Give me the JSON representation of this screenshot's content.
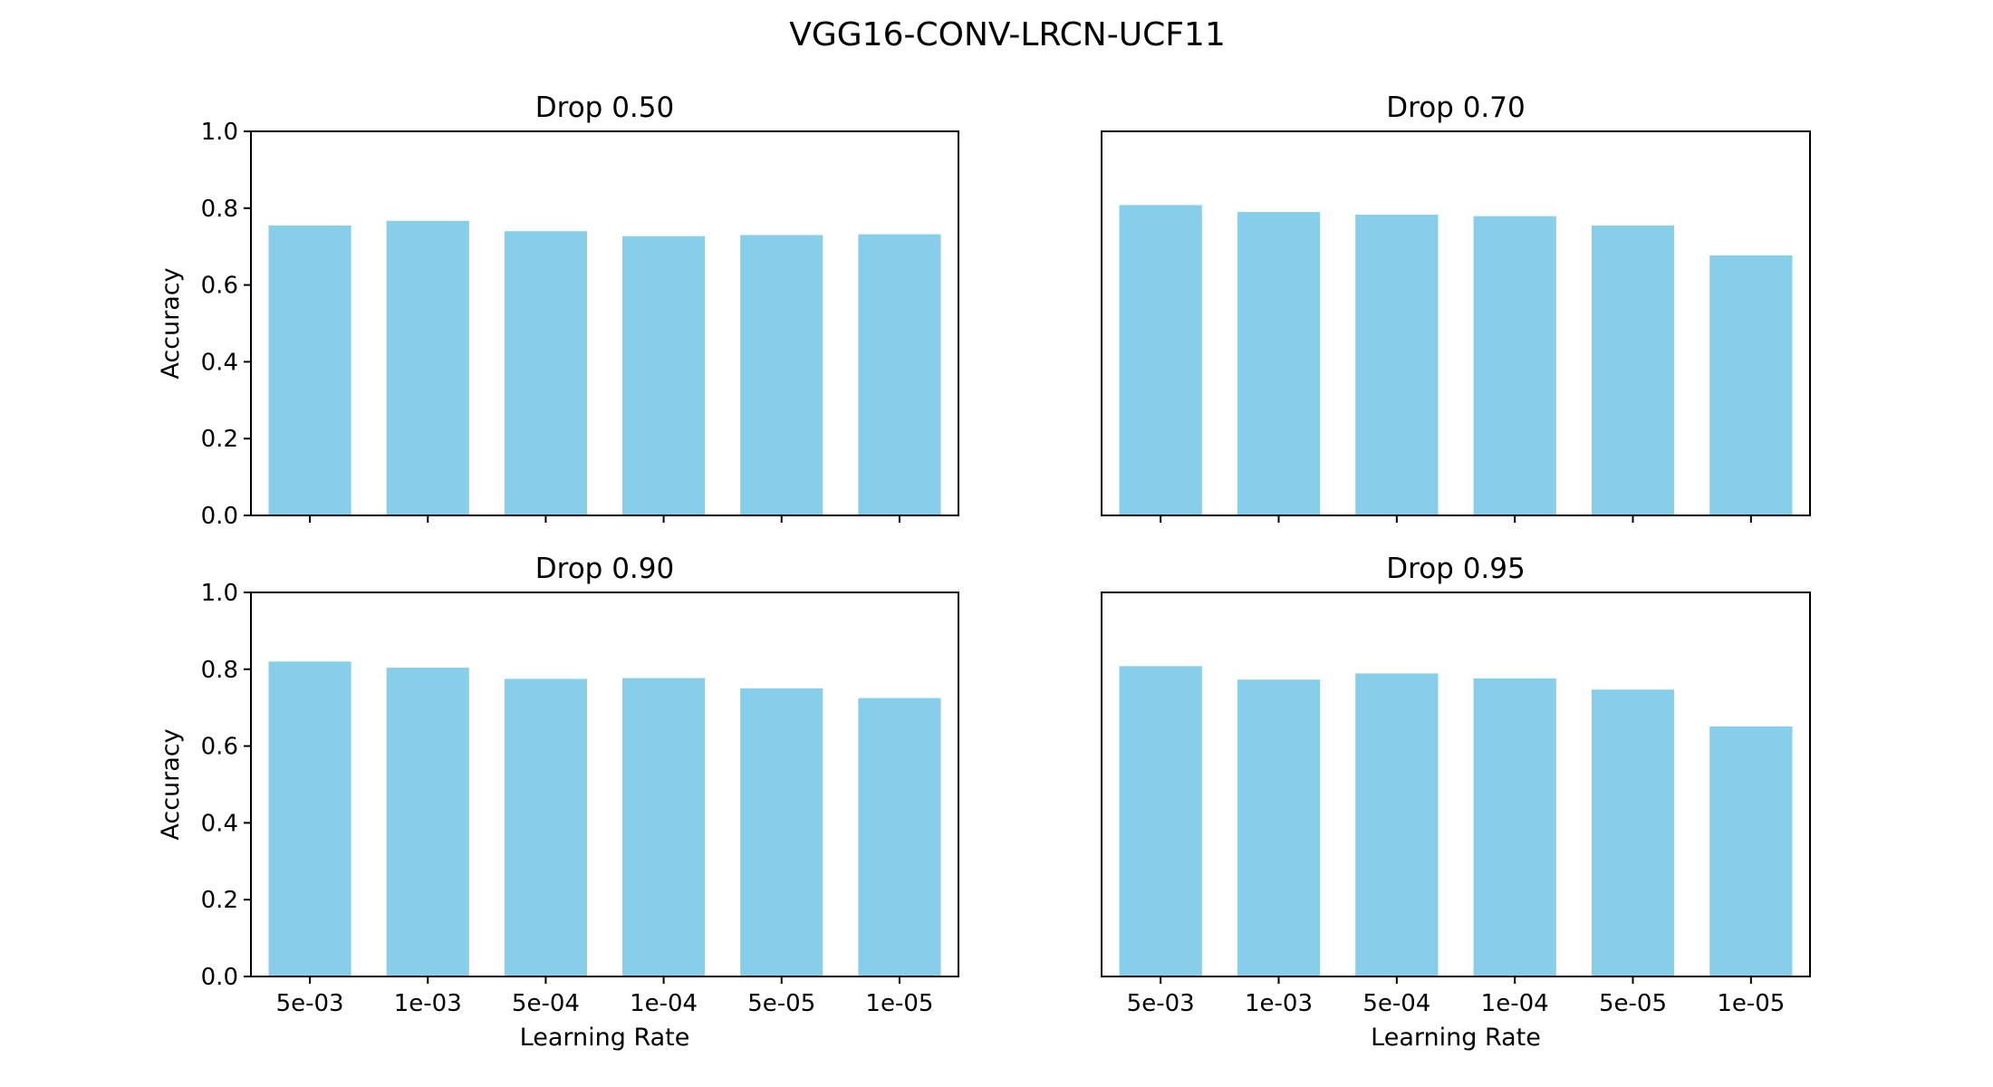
{
  "figure": {
    "title": "VGG16-CONV-LRCN-UCF11"
  },
  "chart_data": [
    {
      "type": "bar",
      "title": "Drop 0.50",
      "categories": [
        "5e-03",
        "1e-03",
        "5e-04",
        "1e-04",
        "5e-05",
        "1e-05"
      ],
      "values": [
        0.755,
        0.767,
        0.74,
        0.727,
        0.73,
        0.732
      ],
      "xlabel": "",
      "ylabel": "Accuracy",
      "ylim": [
        0,
        1.0
      ],
      "yticks": [
        "0.0",
        "0.2",
        "0.4",
        "0.6",
        "0.8",
        "1.0"
      ],
      "color": "#87CEEB",
      "grid": false
    },
    {
      "type": "bar",
      "title": "Drop 0.70",
      "categories": [
        "5e-03",
        "1e-03",
        "5e-04",
        "1e-04",
        "5e-05",
        "1e-05"
      ],
      "values": [
        0.808,
        0.79,
        0.783,
        0.779,
        0.755,
        0.677
      ],
      "xlabel": "",
      "ylabel": "",
      "ylim": [
        0,
        1.0
      ],
      "yticks": [],
      "color": "#87CEEB",
      "grid": false
    },
    {
      "type": "bar",
      "title": "Drop 0.90",
      "categories": [
        "5e-03",
        "1e-03",
        "5e-04",
        "1e-04",
        "5e-05",
        "1e-05"
      ],
      "values": [
        0.82,
        0.804,
        0.775,
        0.777,
        0.75,
        0.725
      ],
      "xlabel": "Learning Rate",
      "ylabel": "Accuracy",
      "ylim": [
        0,
        1.0
      ],
      "yticks": [
        "0.0",
        "0.2",
        "0.4",
        "0.6",
        "0.8",
        "1.0"
      ],
      "color": "#87CEEB",
      "grid": false
    },
    {
      "type": "bar",
      "title": "Drop 0.95",
      "categories": [
        "5e-03",
        "1e-03",
        "5e-04",
        "1e-04",
        "5e-05",
        "1e-05"
      ],
      "values": [
        0.808,
        0.773,
        0.789,
        0.776,
        0.747,
        0.651
      ],
      "xlabel": "Learning Rate",
      "ylabel": "",
      "ylim": [
        0,
        1.0
      ],
      "yticks": [],
      "color": "#87CEEB",
      "grid": false
    }
  ]
}
